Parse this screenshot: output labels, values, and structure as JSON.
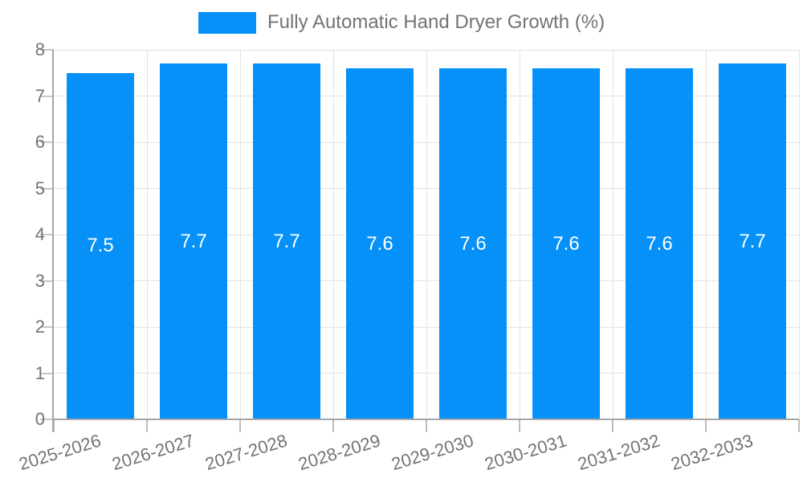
{
  "chart_data": {
    "type": "bar",
    "title": "",
    "legend_label": "Fully Automatic Hand Dryer Growth (%)",
    "legend_position": "top",
    "categories": [
      "2025-2026",
      "2026-2027",
      "2027-2028",
      "2028-2029",
      "2029-2030",
      "2030-2031",
      "2031-2032",
      "2032-2033"
    ],
    "values": [
      7.5,
      7.7,
      7.7,
      7.6,
      7.6,
      7.6,
      7.6,
      7.7
    ],
    "bar_labels": [
      "7.5",
      "7.7",
      "7.7",
      "7.6",
      "7.6",
      "7.6",
      "7.6",
      "7.7"
    ],
    "xlabel": "",
    "ylabel": "",
    "ylim": [
      0,
      8
    ],
    "yticks": [
      0,
      1,
      2,
      3,
      4,
      5,
      6,
      7,
      8
    ],
    "grid": true
  },
  "colors": {
    "bar": "#0591f8",
    "bar_label_text": "#ffffff",
    "axis_text": "#737373",
    "legend_text": "#737373",
    "grid_line": "#e3e3e3",
    "axis_line": "#a6a6a6",
    "background": "#ffffff"
  }
}
